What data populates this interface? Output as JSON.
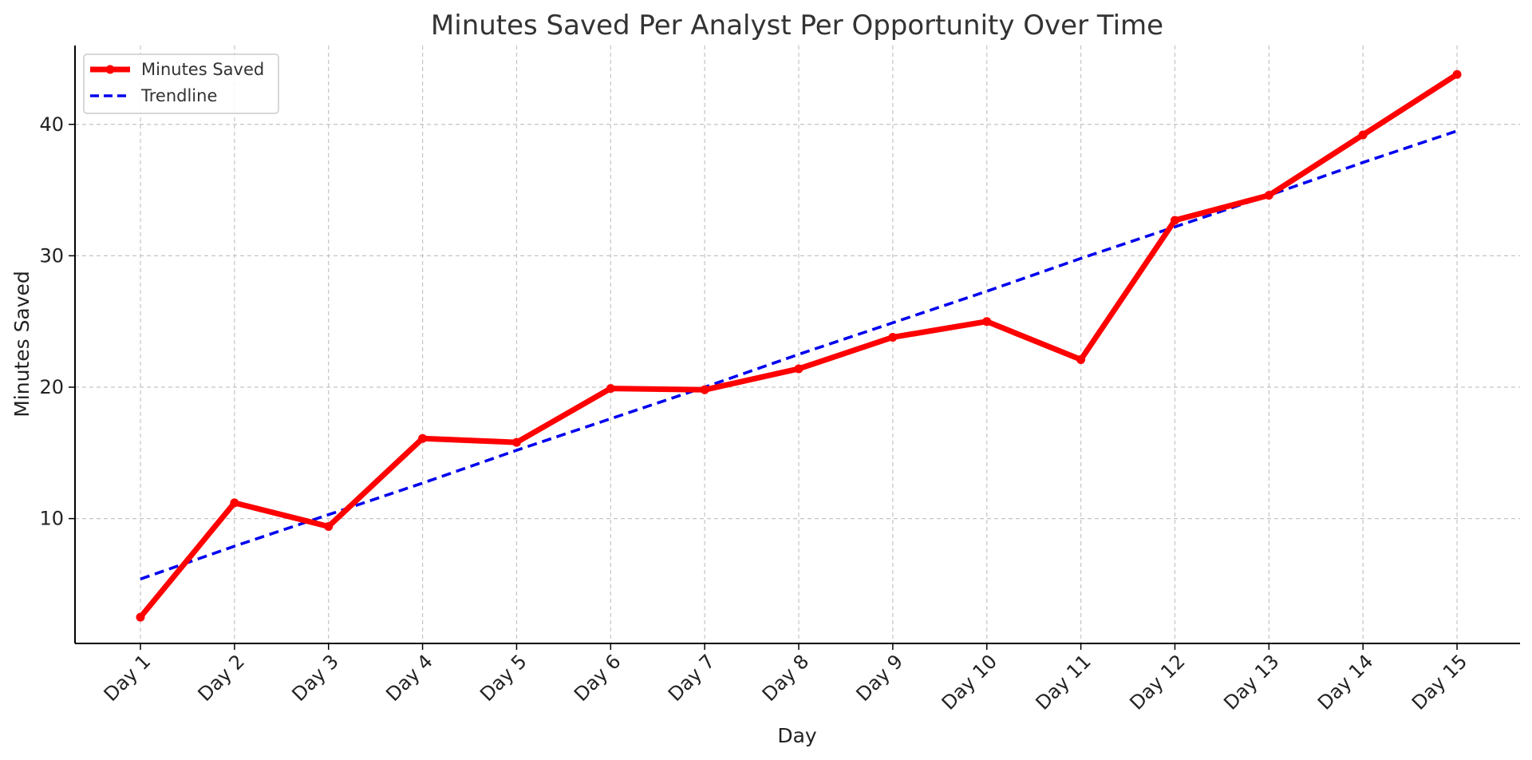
{
  "chart_data": {
    "type": "line",
    "title": "Minutes Saved Per Analyst Per Opportunity Over Time",
    "xlabel": "Day",
    "ylabel": "Minutes Saved",
    "categories": [
      "Day 1",
      "Day 2",
      "Day 3",
      "Day 4",
      "Day 5",
      "Day 6",
      "Day 7",
      "Day 8",
      "Day 9",
      "Day 10",
      "Day 11",
      "Day 12",
      "Day 13",
      "Day 14",
      "Day 15"
    ],
    "yticks": [
      10,
      20,
      30,
      40
    ],
    "ylim": [
      0.5,
      46
    ],
    "grid": true,
    "legend_position": "top-left",
    "series": [
      {
        "name": "Minutes Saved",
        "style": "solid-markers",
        "color": "#ff0000",
        "values": [
          2.5,
          11.2,
          9.4,
          16.1,
          15.8,
          19.9,
          19.8,
          21.4,
          23.8,
          25.0,
          22.1,
          32.7,
          34.6,
          39.2,
          43.8
        ]
      },
      {
        "name": "Trendline",
        "style": "dashed",
        "color": "#0000ee",
        "values": [
          5.4,
          7.9,
          10.3,
          12.7,
          15.2,
          17.6,
          20.0,
          22.5,
          24.9,
          27.3,
          29.8,
          32.2,
          34.6,
          37.1,
          39.5
        ]
      }
    ]
  }
}
